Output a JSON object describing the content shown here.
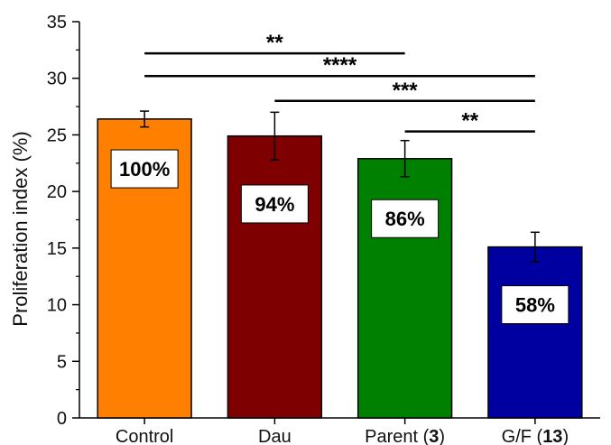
{
  "chart_data": {
    "type": "bar",
    "categories": [
      {
        "label": "Control",
        "bold": ""
      },
      {
        "label": "Dau",
        "bold": ""
      },
      {
        "label": "Parent (",
        "bold": "3",
        "suffix": ")"
      },
      {
        "label": "G/F (",
        "bold": "13",
        "suffix": ")"
      }
    ],
    "values": [
      26.4,
      24.9,
      22.9,
      15.1
    ],
    "errors": [
      0.7,
      2.1,
      1.6,
      1.3
    ],
    "bar_labels": [
      "100%",
      "94%",
      "86%",
      "58%"
    ],
    "bar_label_values": [
      22.0,
      18.9,
      17.6,
      10.0
    ],
    "colors": [
      "#FF8000",
      "#7F0000",
      "#008000",
      "#0000A0"
    ],
    "ylabel": "Proliferation index (%)",
    "xlabel": "",
    "title": "",
    "ylim": [
      0,
      35
    ],
    "yticks": [
      0,
      5,
      10,
      15,
      20,
      25,
      30,
      35
    ],
    "grid": false,
    "significance": [
      {
        "from": 0,
        "to": 2,
        "y": 32.2,
        "label": "**"
      },
      {
        "from": 0,
        "to": 3,
        "y": 30.2,
        "label": "****"
      },
      {
        "from": 1,
        "to": 3,
        "y": 28.0,
        "label": "***"
      },
      {
        "from": 2,
        "to": 3,
        "y": 25.3,
        "label": "**"
      }
    ]
  }
}
